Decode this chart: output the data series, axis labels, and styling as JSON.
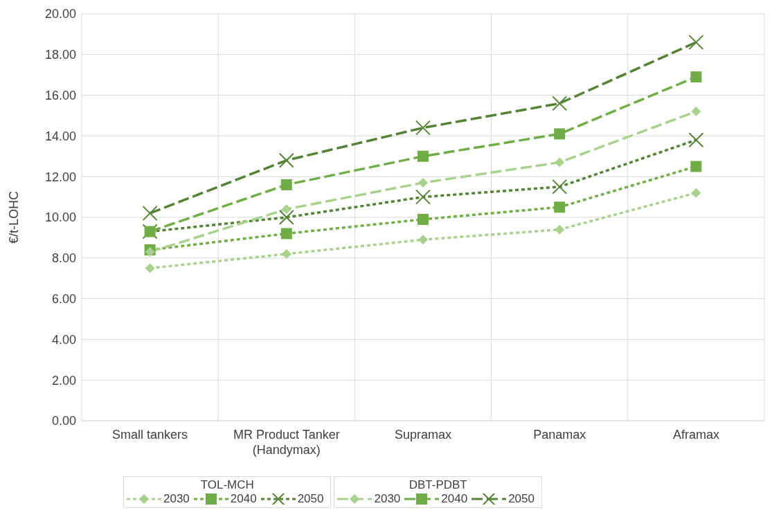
{
  "chart_data": {
    "type": "line",
    "ylabel": "€/t-LOHC",
    "categories": [
      "Small tankers",
      "MR Product Tanker (Handymax)",
      "Supramax",
      "Panamax",
      "Aframax"
    ],
    "ylim": [
      0,
      20
    ],
    "yticks": [
      {
        "value": 0,
        "label": "0.00"
      },
      {
        "value": 2,
        "label": "2.00"
      },
      {
        "value": 4,
        "label": "4.00"
      },
      {
        "value": 6,
        "label": "6.00"
      },
      {
        "value": 8,
        "label": "8.00"
      },
      {
        "value": 10,
        "label": "10.00"
      },
      {
        "value": 12,
        "label": "12.00"
      },
      {
        "value": 14,
        "label": "14.00"
      },
      {
        "value": 16,
        "label": "16.00"
      },
      {
        "value": 18,
        "label": "18.00"
      },
      {
        "value": 20,
        "label": "20.00"
      }
    ],
    "grid": true,
    "legend": "bottom",
    "legend_title": [
      "TOL-MCH",
      "DBT-PDBT"
    ],
    "series": [
      {
        "name": "2030",
        "color": "#a9d18e",
        "marker": "diamond",
        "line_style": "dotted",
        "values": [
          7.5,
          8.2,
          8.9,
          9.4,
          11.2
        ]
      },
      {
        "name": "2040",
        "color": "#70ad47",
        "marker": "square",
        "line_style": "dotted",
        "values": [
          8.4,
          9.2,
          9.9,
          10.5,
          12.5
        ]
      },
      {
        "name": "2050",
        "color": "#548235",
        "marker": "cross",
        "line_style": "dotted",
        "values": [
          9.3,
          10.0,
          11.0,
          11.5,
          13.8
        ]
      },
      {
        "name": "2030",
        "color": "#a9d18e",
        "marker": "diamond",
        "line_style": "dashed",
        "values": [
          8.3,
          10.4,
          11.7,
          12.7,
          15.2
        ]
      },
      {
        "name": "2040",
        "color": "#70ad47",
        "marker": "square",
        "line_style": "dashed",
        "values": [
          9.3,
          11.6,
          13.0,
          14.1,
          16.9
        ]
      },
      {
        "name": "2050",
        "color": "#548235",
        "marker": "cross",
        "line_style": "dashed",
        "values": [
          10.2,
          12.8,
          14.4,
          15.6,
          18.6
        ]
      }
    ]
  }
}
